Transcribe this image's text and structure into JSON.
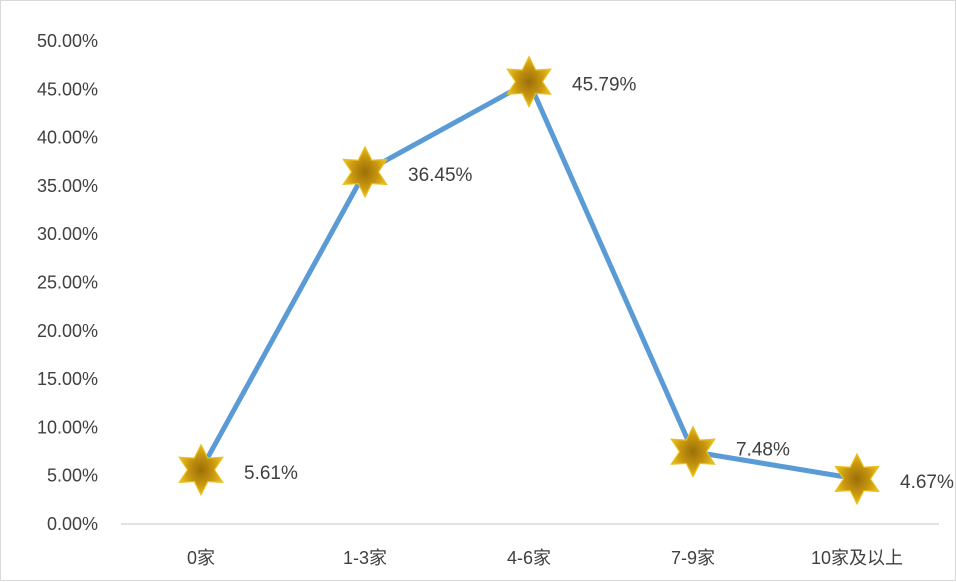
{
  "chart_data": {
    "type": "line",
    "title": "",
    "xlabel": "",
    "ylabel": "",
    "categories": [
      "0家",
      "1-3家",
      "4-6家",
      "7-9家",
      "10家及以上"
    ],
    "series": [
      {
        "values": [
          0.0561,
          0.3645,
          0.4579,
          0.0748,
          0.0467
        ],
        "data_labels": [
          "5.61%",
          "36.45%",
          "45.79%",
          "7.48%",
          "4.67%"
        ]
      }
    ],
    "ylim": [
      0,
      0.5
    ],
    "y_ticks": [
      0,
      0.05,
      0.1,
      0.15,
      0.2,
      0.25,
      0.3,
      0.35,
      0.4,
      0.45,
      0.5
    ],
    "y_tick_labels": [
      "0.00%",
      "5.00%",
      "10.00%",
      "15.00%",
      "20.00%",
      "25.00%",
      "30.00%",
      "35.00%",
      "40.00%",
      "45.00%",
      "50.00%"
    ],
    "grid": false,
    "legend": "none",
    "colors": {
      "line": "#5b9bd5",
      "marker_fill": "#d4a017",
      "marker_stroke": "#e8c020",
      "marker_center": "#b8860b",
      "axis": "#d9d9d9",
      "text": "#404040"
    },
    "marker": "six-point-star-icon"
  }
}
